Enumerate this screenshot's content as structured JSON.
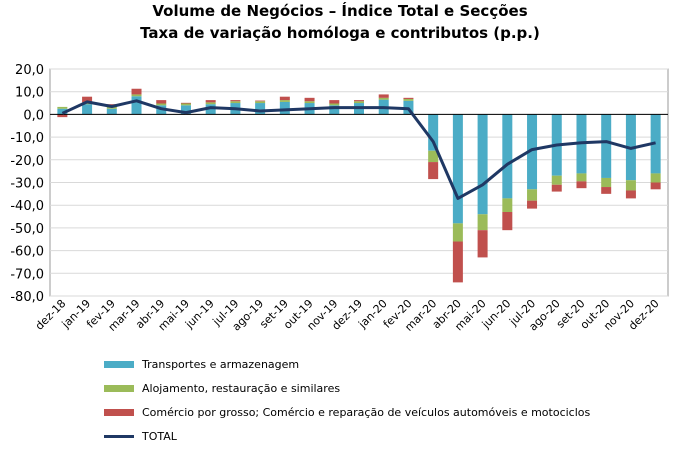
{
  "chart_data": {
    "type": "bar",
    "title": "Volume de Negócios – Índice Total e Secções",
    "subtitle": "Taxa de variação homóloga e contributos (p.p.)",
    "xlabel": "",
    "ylabel": "",
    "ylim": [
      -80,
      20
    ],
    "yticks": [
      "20,0",
      "10,0",
      "0,0",
      "-10,0",
      "-20,0",
      "-30,0",
      "-40,0",
      "-50,0",
      "-60,0",
      "-70,0",
      "-80,0"
    ],
    "grid": true,
    "legend_position": "bottom",
    "categories": [
      "dez-18",
      "jan-19",
      "fev-19",
      "mar-19",
      "abr-19",
      "mai-19",
      "jun-19",
      "jul-19",
      "ago-19",
      "set-19",
      "out-19",
      "nov-19",
      "dez-19",
      "jan-20",
      "fev-20",
      "mar-20",
      "abr-20",
      "mai-20",
      "jun-20",
      "jul-20",
      "ago-20",
      "set-20",
      "out-20",
      "nov-20",
      "dez-20"
    ],
    "series": [
      {
        "name": "Transportes e armazenagem",
        "color": "#4BACC6",
        "values": [
          2.5,
          4.5,
          2.5,
          8.0,
          4.0,
          4.0,
          4.5,
          5.0,
          5.0,
          5.5,
          5.0,
          4.0,
          5.0,
          6.5,
          6.0,
          -16,
          -48,
          -44,
          -37,
          -33,
          -27,
          -26,
          -28,
          -29,
          -26
        ]
      },
      {
        "name": "Alojamento, restauração e similares",
        "color": "#9BBB59",
        "values": [
          0.8,
          0.8,
          0.8,
          0.8,
          0.8,
          0.8,
          0.8,
          0.8,
          0.8,
          0.8,
          0.8,
          0.8,
          0.8,
          0.8,
          0.8,
          -5,
          -8,
          -7,
          -6,
          -5,
          -4,
          -3.5,
          -4,
          -4.5,
          -4
        ]
      },
      {
        "name": "Comércio por grosso; Comércio e reparação de veículos automóveis e motociclos",
        "color": "#C0504D",
        "values": [
          -1.2,
          2.5,
          1.2,
          2.5,
          1.5,
          0.3,
          1.0,
          0.5,
          0.3,
          1.5,
          1.5,
          1.5,
          0.5,
          1.5,
          0.5,
          -7.5,
          -18,
          -12,
          -8,
          -3.5,
          -3,
          -3,
          -3,
          -3.5,
          -3
        ]
      },
      {
        "name": "TOTAL",
        "color": "#1F3864",
        "values": [
          0.5,
          5.5,
          3.5,
          6.0,
          2.5,
          0.8,
          3.0,
          2.5,
          1.5,
          2.0,
          2.5,
          3.0,
          3.0,
          3.0,
          2.5,
          -12,
          -37,
          -31,
          -22,
          -15.5,
          -13.5,
          -12.5,
          -12,
          -15,
          -12.5
        ]
      }
    ]
  }
}
